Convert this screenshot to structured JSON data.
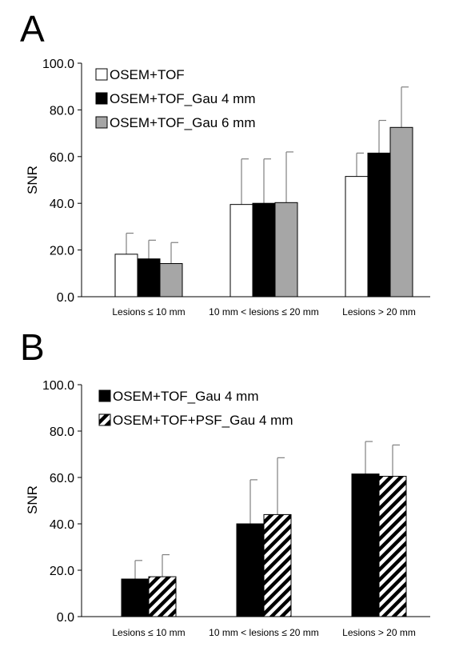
{
  "chart_data": [
    {
      "panel_label": "A",
      "type": "bar",
      "ylabel": "SNR",
      "ylim": [
        0,
        100
      ],
      "yticks": [
        "0.0",
        "20.0",
        "40.0",
        "60.0",
        "80.0",
        "100.0"
      ],
      "grid": false,
      "legend_position": "top-left",
      "categories": [
        "Lesions ≤ 10 mm",
        "10 mm < lesions ≤ 20 mm",
        "Lesions > 20 mm"
      ],
      "series": [
        {
          "name": "OSEM+TOF",
          "fill": "#ffffff",
          "pattern": "solid",
          "values": [
            18.2,
            39.5,
            51.5
          ],
          "errors": [
            9.0,
            19.5,
            10.0
          ]
        },
        {
          "name": "OSEM+TOF_Gau 4 mm",
          "fill": "#000000",
          "pattern": "solid",
          "values": [
            16.2,
            40.0,
            61.5
          ],
          "errors": [
            8.0,
            19.0,
            14.0
          ]
        },
        {
          "name": "OSEM+TOF_Gau 6 mm",
          "fill": "#a6a6a6",
          "pattern": "solid",
          "values": [
            14.2,
            40.3,
            72.5
          ],
          "errors": [
            9.0,
            21.7,
            17.3
          ]
        }
      ]
    },
    {
      "panel_label": "B",
      "type": "bar",
      "ylabel": "SNR",
      "ylim": [
        0,
        100
      ],
      "yticks": [
        "0.0",
        "20.0",
        "40.0",
        "60.0",
        "80.0",
        "100.0"
      ],
      "grid": false,
      "legend_position": "top-left",
      "categories": [
        "Lesions ≤ 10 mm",
        "10 mm < lesions ≤ 20 mm",
        "Lesions > 20 mm"
      ],
      "series": [
        {
          "name": "OSEM+TOF_Gau 4 mm",
          "fill": "#000000",
          "pattern": "solid",
          "values": [
            16.2,
            40.0,
            61.5
          ],
          "errors": [
            8.0,
            19.0,
            14.0
          ]
        },
        {
          "name": "OSEM+TOF+PSF_Gau 4 mm",
          "fill": "#ffffff",
          "pattern": "hatch",
          "values": [
            17.2,
            44.0,
            60.5
          ],
          "errors": [
            9.5,
            24.5,
            13.5
          ]
        }
      ]
    }
  ]
}
